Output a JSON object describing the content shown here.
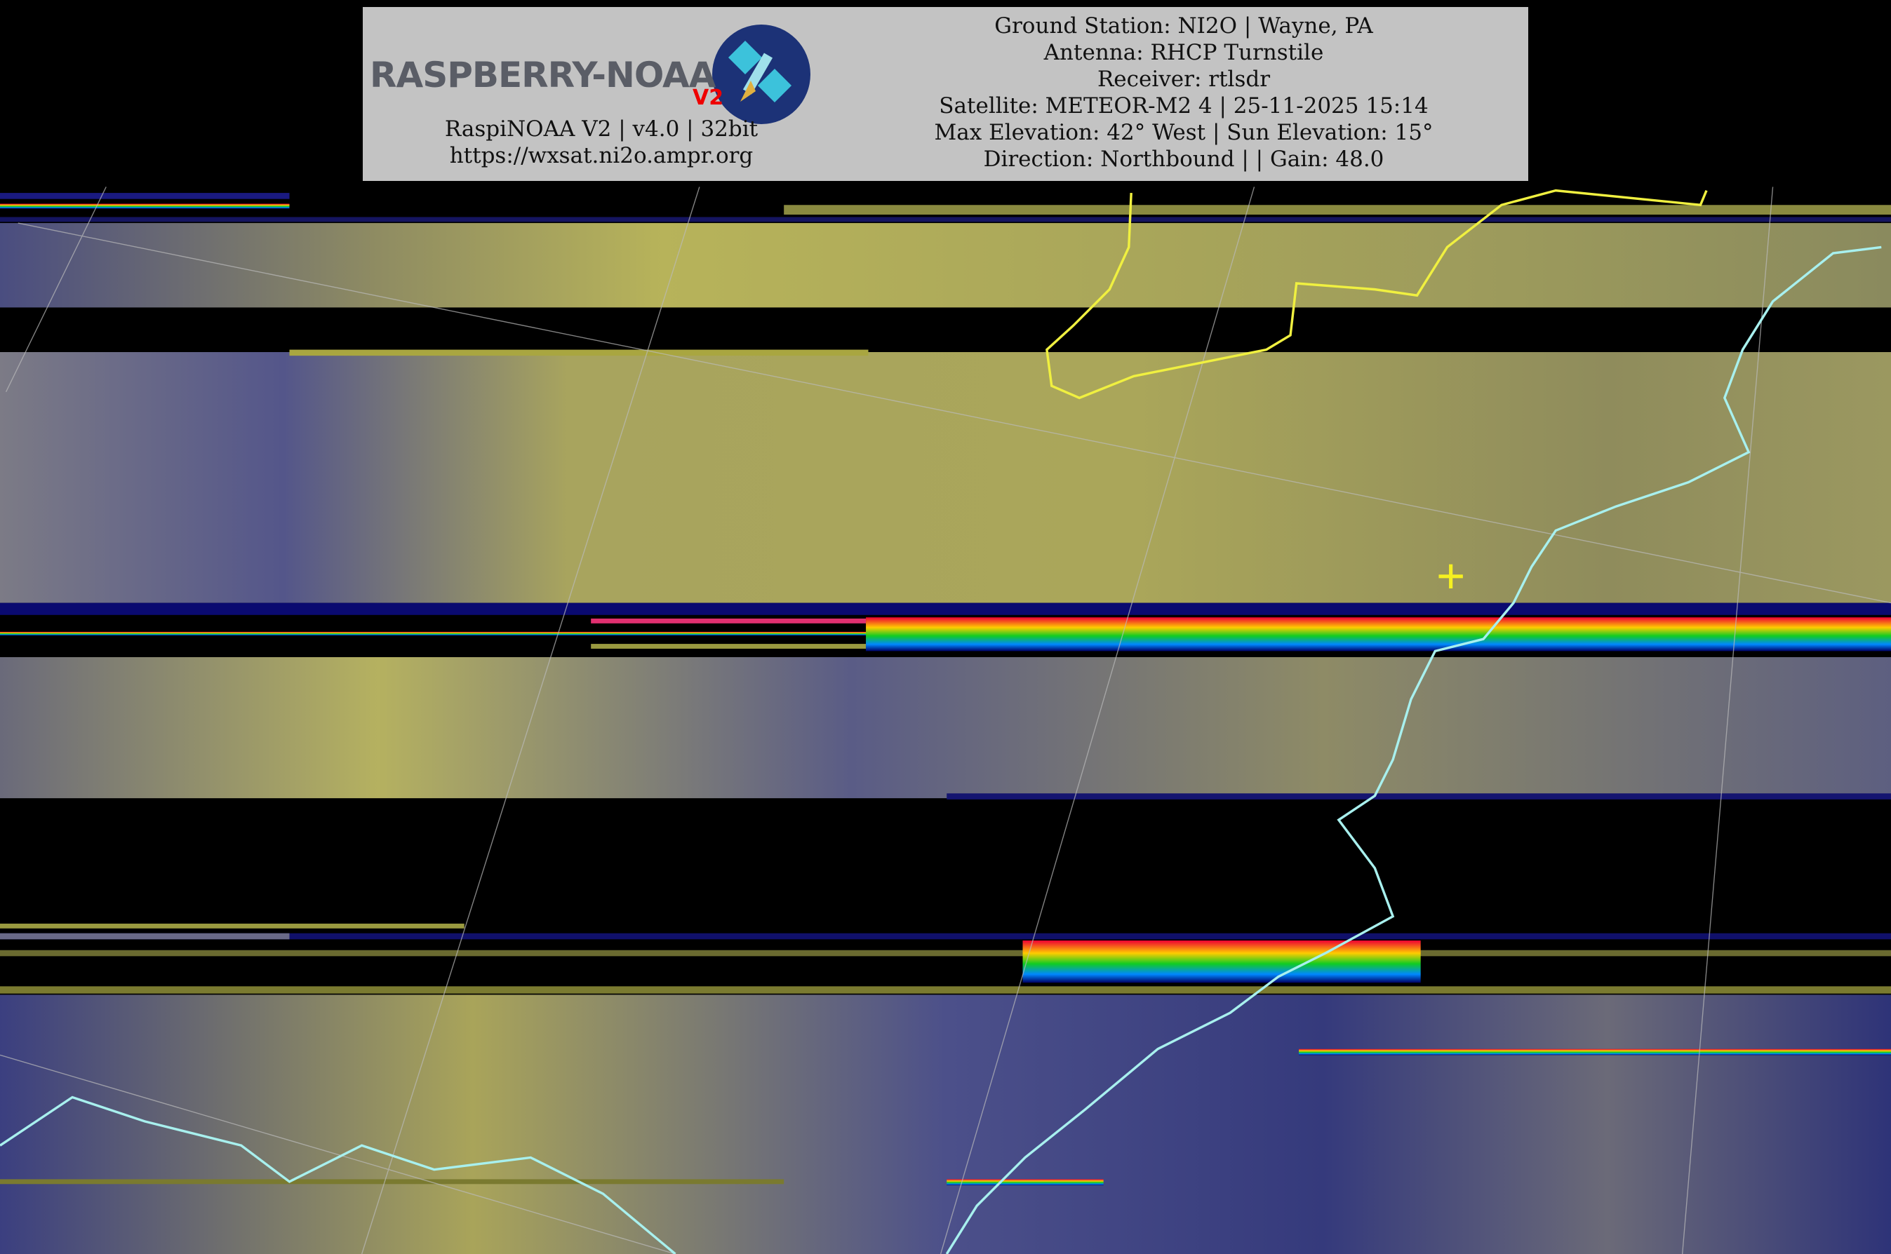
{
  "logo": {
    "text": "RASPBERRY-NOAA",
    "badge": "V2",
    "icon": "satellite-icon"
  },
  "software": {
    "version_line": "RaspiNOAA V2 | v4.0 | 32bit",
    "url": "https://wxsat.ni2o.ampr.org"
  },
  "pass_info": [
    "Ground Station: NI2O | Wayne, PA",
    "Antenna: RHCP Turnstile",
    "Receiver: rtlsdr",
    "Satellite: METEOR-M2 4 | 25-11-2025 15:14",
    "Max Elevation: 42° West | Sun Elevation: 15°",
    "Direction: Northbound | | Gain: 48.0"
  ],
  "colors": {
    "header_bg": "#c3c3c3",
    "cloud_yellow": "#c9c45a",
    "ground_blue": "#2a2f78",
    "coastline": "#a8f0ee",
    "border": "#f0f040",
    "marker": "#f5f020"
  },
  "map": {
    "marker_icon": "crosshair-icon"
  }
}
